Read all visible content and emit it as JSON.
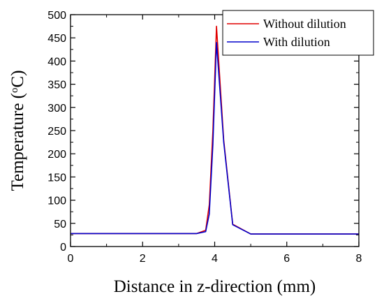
{
  "chart_data": {
    "type": "line",
    "title": "",
    "xlabel": "Distance in z-direction (mm)",
    "ylabel_main": "Temperature (",
    "ylabel_sup": "o",
    "ylabel_unit": "C)",
    "xlim": [
      0,
      8
    ],
    "ylim": [
      0,
      500
    ],
    "xticks": [
      0,
      2,
      4,
      6,
      8
    ],
    "yticks": [
      0,
      50,
      100,
      150,
      200,
      250,
      300,
      350,
      400,
      450,
      500
    ],
    "grid": false,
    "legend_position": "top-right",
    "series": [
      {
        "name": "Without dilution",
        "color": "#e00000",
        "x": [
          0,
          3.5,
          3.75,
          3.85,
          3.95,
          4.05,
          4.25,
          4.5,
          5.0,
          8.0
        ],
        "y": [
          28,
          28,
          35,
          90,
          250,
          475,
          230,
          48,
          27,
          27
        ]
      },
      {
        "name": "With dilution",
        "color": "#0000cc",
        "x": [
          0,
          3.5,
          3.75,
          3.85,
          3.95,
          4.05,
          4.25,
          4.5,
          5.0,
          8.0
        ],
        "y": [
          28,
          28,
          32,
          70,
          220,
          440,
          225,
          47,
          27,
          27
        ]
      }
    ]
  }
}
